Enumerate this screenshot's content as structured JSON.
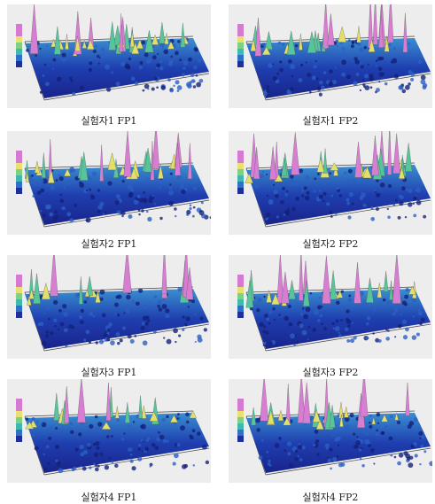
{
  "panels": [
    {
      "caption": "실험자1  FP1"
    },
    {
      "caption": "실험자1  FP2"
    },
    {
      "caption": "실험자2  FP1"
    },
    {
      "caption": "실험자2  FP2"
    },
    {
      "caption": "실험자3  FP1"
    },
    {
      "caption": "실험자3  FP2"
    },
    {
      "caption": "실험자4  FP1"
    },
    {
      "caption": "실험자4  FP2"
    }
  ]
}
